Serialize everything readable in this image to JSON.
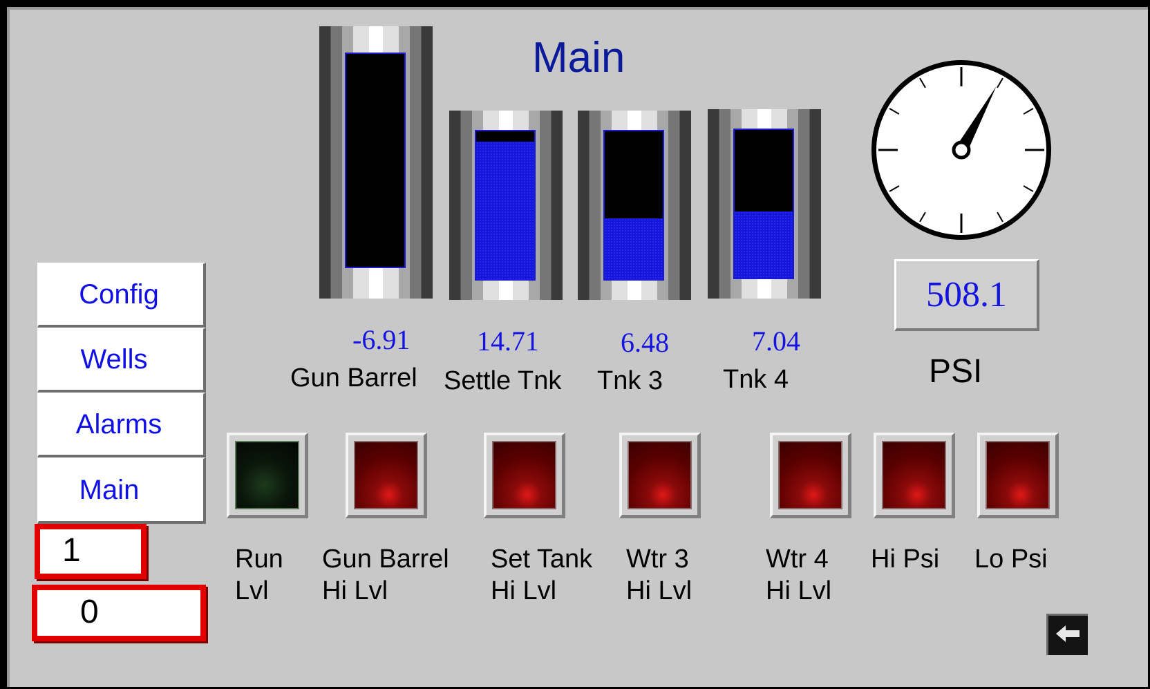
{
  "screen": {
    "title": "Main"
  },
  "nav": {
    "items": [
      {
        "label": "Config"
      },
      {
        "label": "Wells"
      },
      {
        "label": "Alarms"
      },
      {
        "label": "Main"
      }
    ]
  },
  "counters": {
    "first": "1",
    "second": "0"
  },
  "tanks": [
    {
      "label": "Gun Barrel",
      "value": "-6.91",
      "level_fraction": 0.0
    },
    {
      "label": "Settle Tnk",
      "value": "14.71",
      "level_fraction": 0.93
    },
    {
      "label": "Tnk 3",
      "value": "6.48",
      "level_fraction": 0.41
    },
    {
      "label": "Tnk 4",
      "value": "7.04",
      "level_fraction": 0.45
    }
  ],
  "pressure": {
    "value": "508.1",
    "unit": "PSI",
    "gauge_fraction": 0.58
  },
  "indicators": [
    {
      "line1": "Run",
      "line2": "Lvl",
      "state": "green"
    },
    {
      "line1": "Gun Barrel",
      "line2": "Hi Lvl",
      "state": "red"
    },
    {
      "line1": "Set Tank",
      "line2": "Hi Lvl",
      "state": "red"
    },
    {
      "line1": "Wtr 3",
      "line2": "Hi Lvl",
      "state": "red"
    },
    {
      "line1": "Wtr 4",
      "line2": "Hi Lvl",
      "state": "red"
    },
    {
      "line1": "Hi Psi",
      "line2": "",
      "state": "red"
    },
    {
      "line1": "Lo Psi",
      "line2": "",
      "state": "red"
    }
  ],
  "colors": {
    "accent": "#1010e6",
    "tank_fill": "#1616d6",
    "alarm_border": "#e00000",
    "title": "#0a1a9a"
  },
  "icons": {
    "back": "back-arrow-icon"
  }
}
